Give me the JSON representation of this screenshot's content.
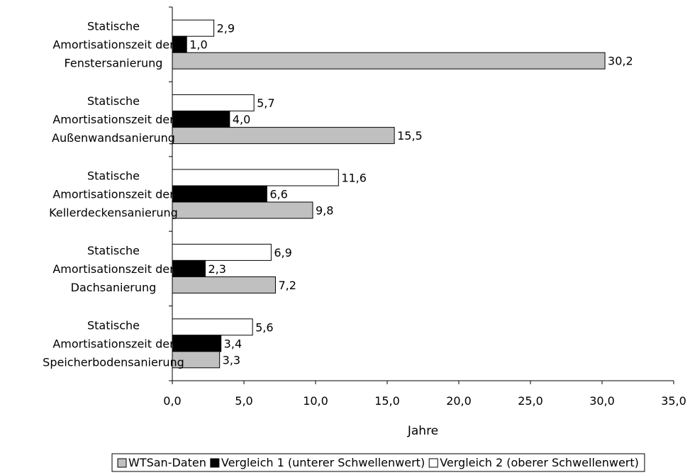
{
  "chart_data": {
    "type": "bar",
    "orientation": "horizontal",
    "categories": [
      [
        "Statische",
        "Amortisationszeit der",
        "Fenstersanierung"
      ],
      [
        "Statische",
        "Amortisationszeit der",
        "Außenwandsanierung"
      ],
      [
        "Statische",
        "Amortisationszeit der",
        "Kellerdeckensanierung"
      ],
      [
        "Statische",
        "Amortisationszeit der",
        "Dachsanierung"
      ],
      [
        "Statische",
        "Amortisationszeit der",
        "Speicherbodensanierung"
      ]
    ],
    "series": [
      {
        "name": "WTSan-Daten",
        "color": "#c0c0c0",
        "values": [
          30.2,
          15.5,
          9.8,
          7.2,
          3.3
        ],
        "labels": [
          "30,2",
          "15,5",
          "9,8",
          "7,2",
          "3,3"
        ]
      },
      {
        "name": "Vergleich 1 (unterer Schwellenwert)",
        "color": "#000000",
        "values": [
          1.0,
          4.0,
          6.6,
          2.3,
          3.4
        ],
        "labels": [
          "1,0",
          "4,0",
          "6,6",
          "2,3",
          "3,4"
        ]
      },
      {
        "name": "Vergleich 2 (oberer Schwellenwert)",
        "color": "#ffffff",
        "values": [
          2.9,
          5.7,
          11.6,
          6.9,
          5.6
        ],
        "labels": [
          "2,9",
          "5,7",
          "11,6",
          "6,9",
          "5,6"
        ]
      }
    ],
    "xlabel": "Jahre",
    "xlim": [
      0,
      35
    ],
    "xticks": [
      0,
      5,
      10,
      15,
      20,
      25,
      30,
      35
    ],
    "xtick_labels": [
      "0,0",
      "5,0",
      "10,0",
      "15,0",
      "20,0",
      "25,0",
      "30,0",
      "35,0"
    ],
    "legend_position": "bottom",
    "legend_order": [
      0,
      1,
      2
    ],
    "grid": false
  }
}
